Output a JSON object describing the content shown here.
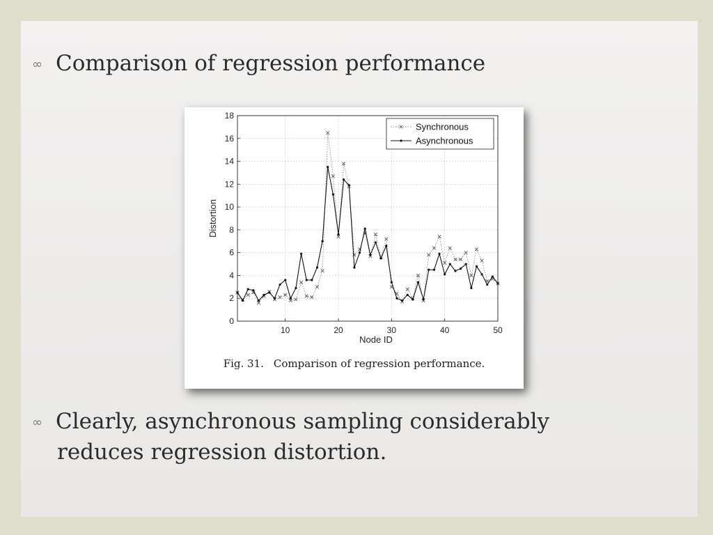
{
  "bullets": [
    {
      "marker": "∞",
      "text": "Comparison of regression performance"
    },
    {
      "marker": "∞",
      "line1": "Clearly, asynchronous sampling considerably",
      "line2": "reduces regression distortion."
    }
  ],
  "figure": {
    "caption_number": "Fig. 31.",
    "caption_text": "Comparison of regression performance."
  },
  "chart_data": {
    "type": "line",
    "xlabel": "Node ID",
    "ylabel": "Distortion",
    "xlim": [
      1,
      50
    ],
    "ylim": [
      0,
      18
    ],
    "xticks": [
      10,
      20,
      30,
      40,
      50
    ],
    "yticks": [
      0,
      2,
      4,
      6,
      8,
      10,
      12,
      14,
      16,
      18
    ],
    "grid": true,
    "legend_position": "top-right",
    "x": [
      1,
      2,
      3,
      4,
      5,
      6,
      7,
      8,
      9,
      10,
      11,
      12,
      13,
      14,
      15,
      16,
      17,
      18,
      19,
      20,
      21,
      22,
      23,
      24,
      25,
      26,
      27,
      28,
      29,
      30,
      31,
      32,
      33,
      34,
      35,
      36,
      37,
      38,
      39,
      40,
      41,
      42,
      43,
      44,
      45,
      46,
      47,
      48,
      49,
      50
    ],
    "series": [
      {
        "name": "Synchronous",
        "style": "dotted-x",
        "color": "#555555",
        "values": [
          2.5,
          1.9,
          2.3,
          2.5,
          1.6,
          2.2,
          2.6,
          1.9,
          2.1,
          2.3,
          1.8,
          1.9,
          3.4,
          2.2,
          2.1,
          3.0,
          4.4,
          16.5,
          12.7,
          7.4,
          13.8,
          11.8,
          5.8,
          6.3,
          7.7,
          5.7,
          7.6,
          5.6,
          7.2,
          3.0,
          2.4,
          1.7,
          2.8,
          2.0,
          4.0,
          1.8,
          5.8,
          6.4,
          7.4,
          5.1,
          6.4,
          5.4,
          5.4,
          6.0,
          4.0,
          6.3,
          5.3,
          3.5,
          3.7,
          3.3
        ]
      },
      {
        "name": "Asynchronous",
        "style": "solid-dot",
        "color": "#111111",
        "values": [
          2.5,
          1.8,
          2.8,
          2.7,
          1.8,
          2.3,
          2.5,
          2.0,
          3.2,
          3.6,
          2.0,
          2.9,
          5.9,
          3.6,
          3.6,
          4.7,
          7.0,
          13.5,
          11.1,
          7.6,
          12.4,
          11.9,
          4.7,
          6.0,
          8.1,
          5.8,
          6.9,
          5.5,
          6.6,
          3.4,
          2.0,
          1.8,
          2.3,
          1.9,
          3.4,
          1.9,
          4.5,
          4.5,
          5.9,
          4.1,
          5.0,
          4.4,
          4.6,
          5.0,
          2.9,
          4.8,
          4.1,
          3.2,
          3.9,
          3.3
        ]
      }
    ]
  }
}
